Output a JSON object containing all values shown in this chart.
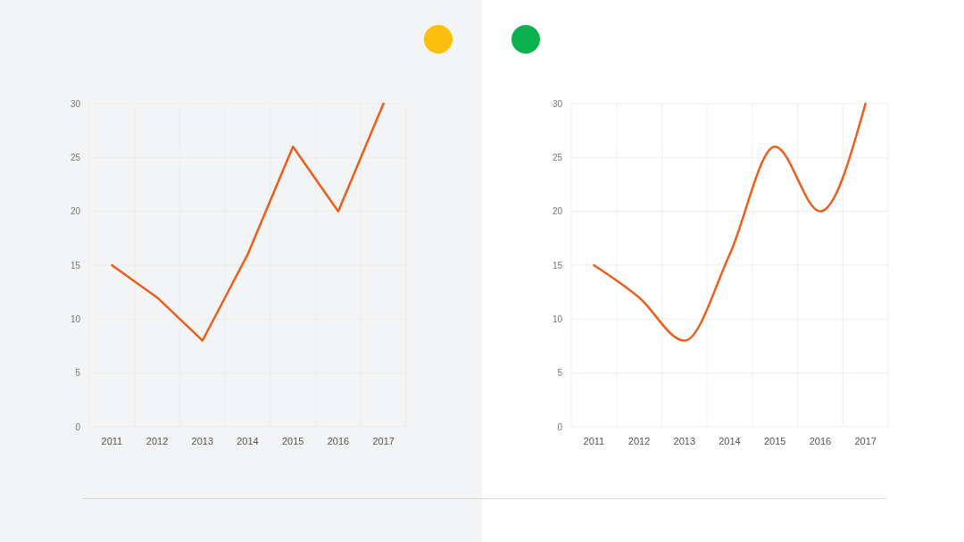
{
  "chart_data": [
    {
      "type": "line",
      "categories": [
        "2011",
        "2012",
        "2013",
        "2014",
        "2015",
        "2016",
        "2017"
      ],
      "series": [
        {
          "color": "#ec5e1c",
          "values": [
            15,
            12,
            8,
            16,
            26,
            20,
            30
          ]
        }
      ],
      "ylim": [
        0,
        30
      ],
      "yticks": [
        0,
        5,
        10,
        15,
        20,
        25,
        30
      ],
      "grid": true
    },
    {
      "type": "line",
      "categories": [
        "2011",
        "2012",
        "2013",
        "2014",
        "2015",
        "2016",
        "2017"
      ],
      "series": [
        {
          "color": "#ec5e1c",
          "values": [
            15,
            12,
            8,
            16,
            26,
            20,
            30
          ]
        }
      ],
      "ylim": [
        0,
        30
      ],
      "yticks": [
        0,
        5,
        10,
        15,
        20,
        25,
        30
      ],
      "grid": true
    }
  ]
}
